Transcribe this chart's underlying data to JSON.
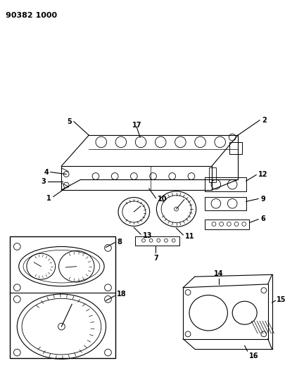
{
  "title": "90382 1000",
  "bg_color": "#ffffff",
  "line_color": "#000000",
  "fig_width": 4.06,
  "fig_height": 5.33,
  "dpi": 100
}
